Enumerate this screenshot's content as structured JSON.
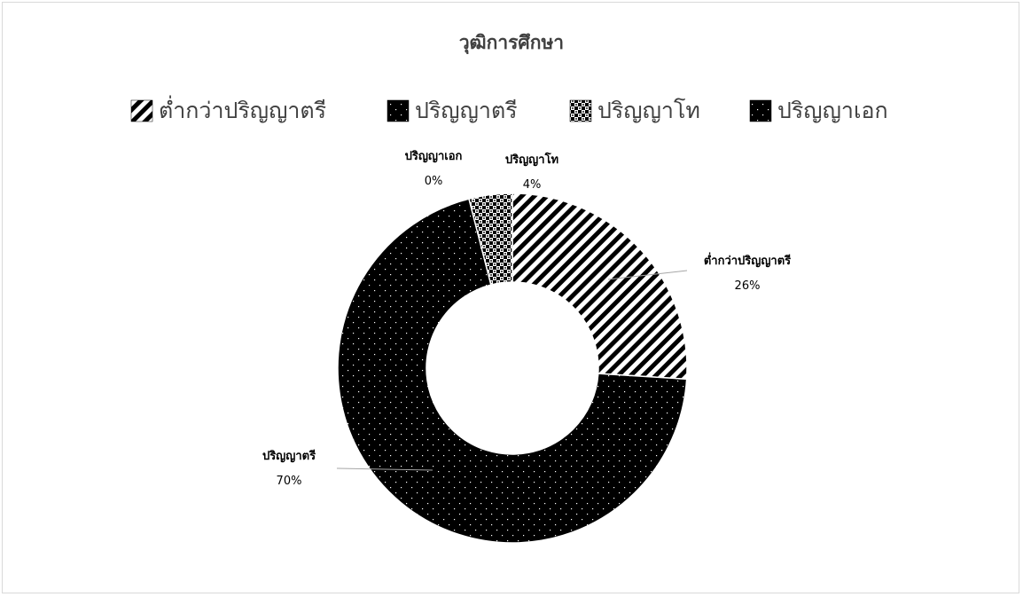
{
  "chart_data": {
    "type": "pie",
    "variant": "donut",
    "title": "วุฒิการศึกษา",
    "legend_position": "top",
    "categories": [
      "ต่ำกว่าปริญญาตรี",
      "ปริญญาตรี",
      "ปริญญาโท",
      "ปริญญาเอก"
    ],
    "values": [
      26,
      70,
      4,
      0
    ],
    "data_labels": [
      {
        "name": "ต่ำกว่าปริญญาตรี",
        "value": "26%"
      },
      {
        "name": "ปริญญาตรี",
        "value": "70%"
      },
      {
        "name": "ปริญญาโท",
        "value": "4%"
      },
      {
        "name": "ปริญญาเอก",
        "value": "0%"
      }
    ],
    "patterns": [
      "diagonal-stripes",
      "dotted-black",
      "checkered",
      "dotted-black"
    ]
  }
}
